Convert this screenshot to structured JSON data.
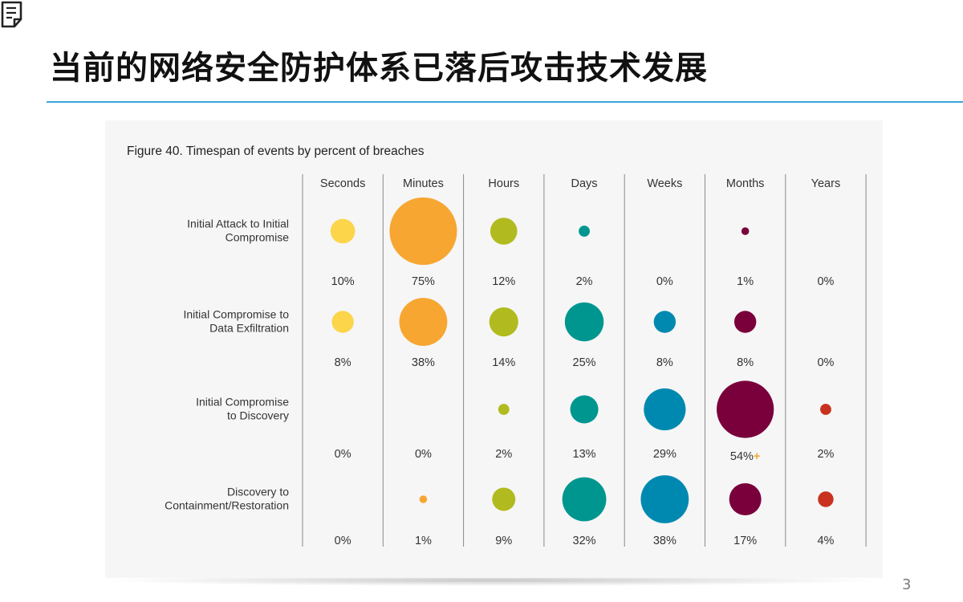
{
  "slide": {
    "title": "当前的网络安全防护体系已落后攻击技术发展",
    "page_number": "3",
    "accent_color": "#3aa6d8",
    "icon": "document-icon"
  },
  "chart_data": {
    "type": "bubble-matrix",
    "title": "Figure 40. Timespan of events by percent of breaches",
    "columns": [
      "Seconds",
      "Minutes",
      "Hours",
      "Days",
      "Weeks",
      "Months",
      "Years"
    ],
    "column_colors": [
      "#fcd54a",
      "#f7a632",
      "#b1bb1f",
      "#009690",
      "#0089b0",
      "#7a003c",
      "#c8321f"
    ],
    "rows": [
      {
        "label_lines": [
          "Initial Attack to Initial",
          "Compromise"
        ],
        "values": [
          10,
          75,
          12,
          2,
          0,
          1,
          0
        ],
        "labels": [
          "10%",
          "75%",
          "12%",
          "2%",
          "0%",
          "1%",
          "0%"
        ]
      },
      {
        "label_lines": [
          "Initial Compromise to",
          "Data Exfiltration"
        ],
        "values": [
          8,
          38,
          14,
          25,
          8,
          8,
          0
        ],
        "labels": [
          "8%",
          "38%",
          "14%",
          "25%",
          "8%",
          "8%",
          "0%"
        ]
      },
      {
        "label_lines": [
          "Initial Compromise",
          "to Discovery"
        ],
        "values": [
          0,
          0,
          2,
          13,
          29,
          54,
          2
        ],
        "labels": [
          "0%",
          "0%",
          "2%",
          "13%",
          "29%",
          "54%",
          "2%"
        ],
        "plus_marker_col": 5
      },
      {
        "label_lines": [
          "Discovery to",
          "Containment/Restoration"
        ],
        "values": [
          0,
          1,
          9,
          32,
          38,
          17,
          4
        ],
        "labels": [
          "0%",
          "1%",
          "9%",
          "32%",
          "38%",
          "17%",
          "4%"
        ]
      }
    ],
    "plus_marker": "+",
    "plus_marker_color": "#f7a632",
    "grid": true
  }
}
